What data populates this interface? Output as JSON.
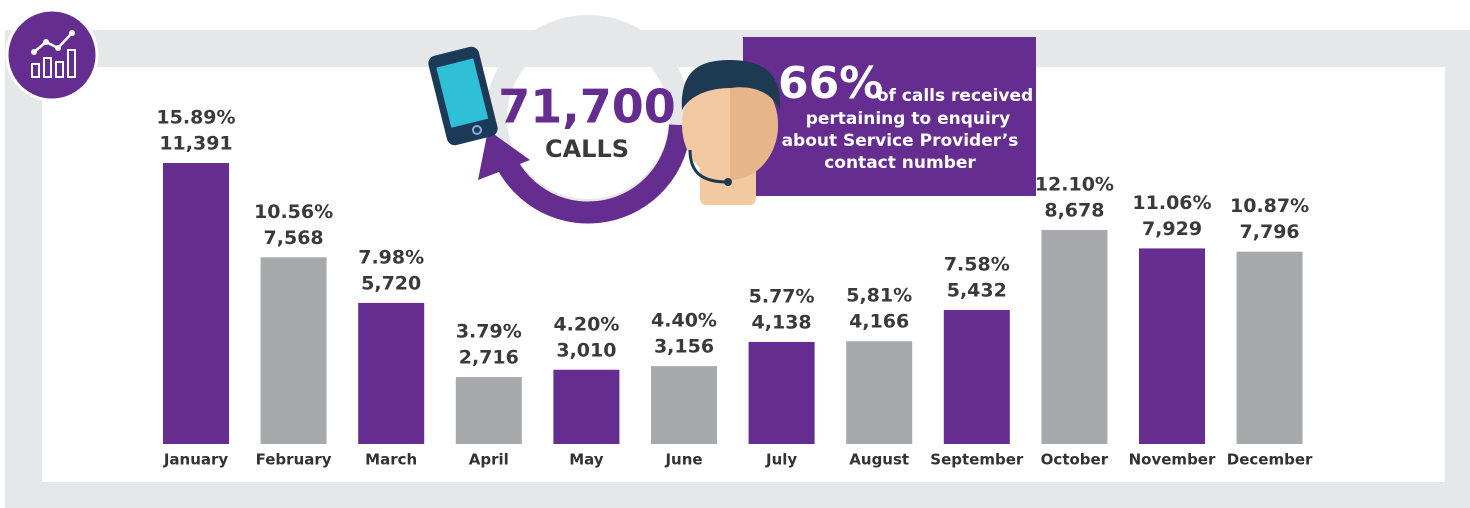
{
  "chart_data": {
    "type": "bar",
    "categories": [
      "January",
      "February",
      "March",
      "April",
      "May",
      "June",
      "July",
      "August",
      "September",
      "October",
      "November",
      "December"
    ],
    "values": [
      11391,
      7568,
      5720,
      2716,
      3010,
      3156,
      4138,
      4166,
      5432,
      8678,
      7929,
      7796
    ],
    "value_labels": [
      "11,391",
      "7,568",
      "5,720",
      "2,716",
      "3,010",
      "3,156",
      "4,138",
      "4,166",
      "5,432",
      "8,678",
      "7,929",
      "7,796"
    ],
    "percent_labels": [
      "15.89%",
      "10.56%",
      "7.98%",
      "3.79%",
      "4.20%",
      "4.40%",
      "5.77%",
      "5,81%",
      "7.58%",
      "12.10%",
      "11.06%",
      "10.87%"
    ],
    "colors": [
      "#662d91",
      "#a7a9ac",
      "#662d91",
      "#a7a9ac",
      "#662d91",
      "#a7a9ac",
      "#662d91",
      "#a7a9ac",
      "#662d91",
      "#a7a9ac",
      "#662d91",
      "#a7a9ac"
    ],
    "ylim": [
      0,
      12000
    ],
    "callout": {
      "total": "71,700",
      "unit": "CALLS",
      "share": "66%",
      "text_lines": [
        "of calls received",
        "pertaining to enquiry",
        "about Service Provider’s",
        "contact number"
      ]
    }
  }
}
